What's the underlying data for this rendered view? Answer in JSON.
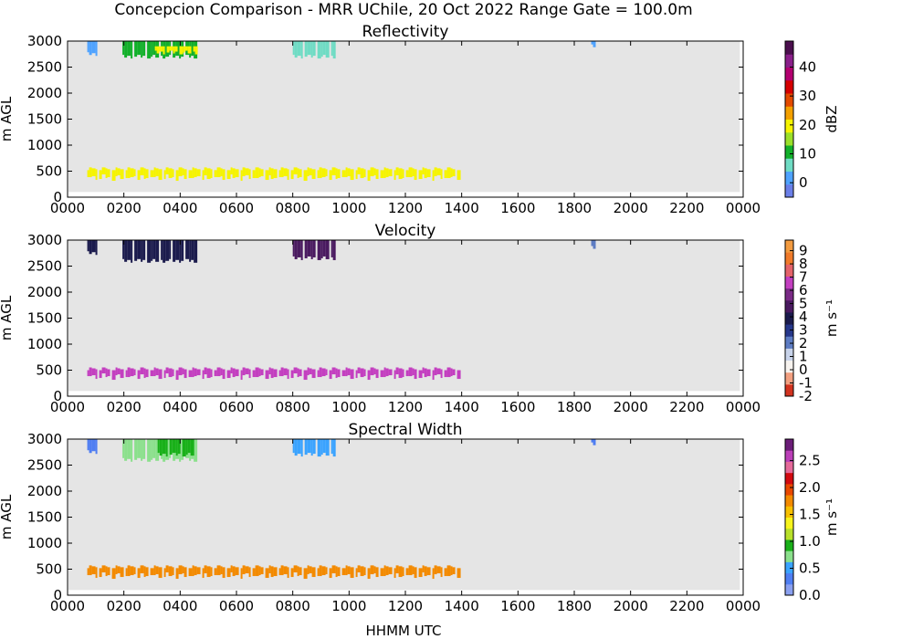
{
  "figure": {
    "suptitle": "Concepcion Comparison - MRR UChile, 20 Oct 2022 Range Gate = 100.0m",
    "xlabel": "HHMM UTC"
  },
  "chart_data": [
    {
      "type": "heatmap",
      "title": "Reflectivity",
      "ylabel": "m AGL",
      "xlim": [
        0,
        24
      ],
      "ylim": [
        0,
        3000
      ],
      "x_ticks": [
        "0000",
        "0200",
        "0400",
        "0600",
        "0800",
        "1000",
        "1200",
        "1400",
        "1600",
        "1800",
        "2000",
        "2200",
        "0000"
      ],
      "y_ticks": [
        0,
        500,
        1000,
        1500,
        2000,
        2500,
        3000
      ],
      "background": "#e5e5e5",
      "colorbar": {
        "label": "dBZ",
        "min": -5,
        "max": 49,
        "ticks": [
          "0",
          "10",
          "20",
          "30",
          "40"
        ],
        "tick_values": [
          0,
          10,
          20,
          30,
          40
        ],
        "colors": [
          "#6b7fe8",
          "#4fa3ff",
          "#6fdcc4",
          "#12b02a",
          "#9be02a",
          "#f6f400",
          "#f3a000",
          "#e34a00",
          "#d50000",
          "#b30070",
          "#8a1f8a",
          "#4b0f4e"
        ]
      },
      "data_regions": [
        {
          "t_start": 0.7,
          "t_end": 13.9,
          "h_min": 350,
          "h_max": 520,
          "value": 20
        },
        {
          "t_start": 1.95,
          "t_end": 4.6,
          "h_min": 2700,
          "h_max": 3000,
          "value": 11
        },
        {
          "t_start": 3.1,
          "t_end": 4.55,
          "h_min": 2780,
          "h_max": 2900,
          "value": 19
        },
        {
          "t_start": 0.7,
          "t_end": 1.0,
          "h_min": 2750,
          "h_max": 3000,
          "value": 3
        },
        {
          "t_start": 8.0,
          "t_end": 9.5,
          "h_min": 2700,
          "h_max": 3000,
          "value": 8
        },
        {
          "t_start": 18.6,
          "t_end": 18.7,
          "h_min": 2900,
          "h_max": 3000,
          "value": 0
        }
      ]
    },
    {
      "type": "heatmap",
      "title": "Velocity",
      "ylabel": "m s⁻¹",
      "ylabel_left": "m AGL",
      "xlim": [
        0,
        24
      ],
      "ylim": [
        0,
        3000
      ],
      "x_ticks": [
        "0000",
        "0200",
        "0400",
        "0600",
        "0800",
        "1000",
        "1200",
        "1400",
        "1600",
        "1800",
        "2000",
        "2200",
        "0000"
      ],
      "y_ticks": [
        0,
        500,
        1000,
        1500,
        2000,
        2500,
        3000
      ],
      "background": "#e5e5e5",
      "colorbar": {
        "label": "m s⁻¹",
        "min": -2,
        "max": 9.8,
        "ticks": [
          "-2",
          "-1",
          "0",
          "1",
          "2",
          "3",
          "4",
          "5",
          "6",
          "7",
          "8",
          "9"
        ],
        "tick_values": [
          -2,
          -1,
          0,
          1,
          2,
          3,
          4,
          5,
          6,
          7,
          8,
          9
        ],
        "colors": [
          "#d2331f",
          "#f2a081",
          "#f7f3ef",
          "#c8d3ea",
          "#5d7cc3",
          "#26378a",
          "#1b1b4d",
          "#4a1a60",
          "#7a2a86",
          "#c33fc0",
          "#e4636a",
          "#f07a2a",
          "#f39b40"
        ]
      },
      "data_regions": [
        {
          "t_start": 0.7,
          "t_end": 13.9,
          "h_min": 350,
          "h_max": 500,
          "value": 6.5
        },
        {
          "t_start": 1.95,
          "t_end": 4.6,
          "h_min": 2600,
          "h_max": 3000,
          "value": 3.5
        },
        {
          "t_start": 0.7,
          "t_end": 1.0,
          "h_min": 2750,
          "h_max": 3000,
          "value": 3.8
        },
        {
          "t_start": 8.0,
          "t_end": 9.5,
          "h_min": 2650,
          "h_max": 3000,
          "value": 4.8
        },
        {
          "t_start": 18.6,
          "t_end": 18.7,
          "h_min": 2850,
          "h_max": 3000,
          "value": 2.5
        }
      ]
    },
    {
      "type": "heatmap",
      "title": "Spectral Width",
      "ylabel": "m s⁻¹",
      "ylabel_left": "m AGL",
      "xlim": [
        0,
        24
      ],
      "ylim": [
        0,
        3000
      ],
      "x_ticks": [
        "0000",
        "0200",
        "0400",
        "0600",
        "0800",
        "1000",
        "1200",
        "1400",
        "1600",
        "1800",
        "2000",
        "2200",
        "0000"
      ],
      "y_ticks": [
        0,
        500,
        1000,
        1500,
        2000,
        2500,
        3000
      ],
      "background": "#e5e5e5",
      "colorbar": {
        "label": "m s⁻¹",
        "min": 0,
        "max": 2.9,
        "ticks": [
          "0.0",
          "0.5",
          "1.0",
          "1.5",
          "2.0",
          "2.5"
        ],
        "tick_values": [
          0,
          0.5,
          1.0,
          1.5,
          2.0,
          2.5
        ],
        "colors": [
          "#8aa0f0",
          "#4f7ef2",
          "#3aa3ff",
          "#8be08c",
          "#19b019",
          "#b8e02a",
          "#f7f41c",
          "#f7c000",
          "#f38a00",
          "#e94800",
          "#d20a10",
          "#e56a9a",
          "#bb3fb8",
          "#6b1d78"
        ]
      },
      "data_regions": [
        {
          "t_start": 0.7,
          "t_end": 13.9,
          "h_min": 350,
          "h_max": 520,
          "value": 1.8
        },
        {
          "t_start": 1.95,
          "t_end": 4.6,
          "h_min": 2600,
          "h_max": 3000,
          "value": 0.7
        },
        {
          "t_start": 3.2,
          "t_end": 4.55,
          "h_min": 2700,
          "h_max": 3000,
          "value": 0.9
        },
        {
          "t_start": 0.7,
          "t_end": 1.0,
          "h_min": 2750,
          "h_max": 3000,
          "value": 0.4
        },
        {
          "t_start": 8.0,
          "t_end": 9.5,
          "h_min": 2700,
          "h_max": 3000,
          "value": 0.45
        },
        {
          "t_start": 18.6,
          "t_end": 18.7,
          "h_min": 2900,
          "h_max": 3000,
          "value": 0.35
        }
      ]
    }
  ]
}
